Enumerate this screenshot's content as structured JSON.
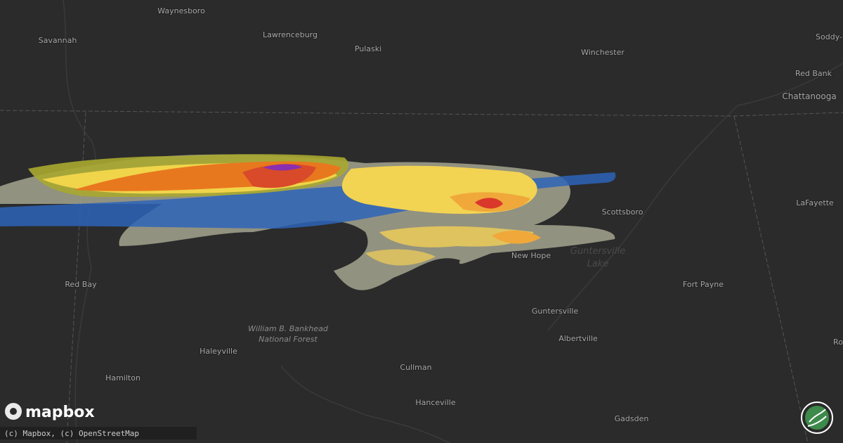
{
  "map": {
    "places": [
      "Waynesboro",
      "Savannah",
      "Lawrenceburg",
      "Pulaski",
      "Winchester",
      "Soddy-",
      "Red Bank",
      "Chattanooga",
      "Scottsboro",
      "LaFayette",
      "Red Bay",
      "Haleyville",
      "Hamilton",
      "Cullman",
      "Hanceville",
      "Gadsden",
      "New Hope",
      "Guntersville",
      "Albertville",
      "Fort Payne",
      "Ro"
    ],
    "forest": [
      "William B. Bankhead",
      "National Forest"
    ],
    "lake": [
      "Guntersville",
      "Lake"
    ]
  },
  "footer": {
    "logo": "mapbox",
    "attribution": "(c) Mapbox, (c) OpenStreetMap"
  }
}
